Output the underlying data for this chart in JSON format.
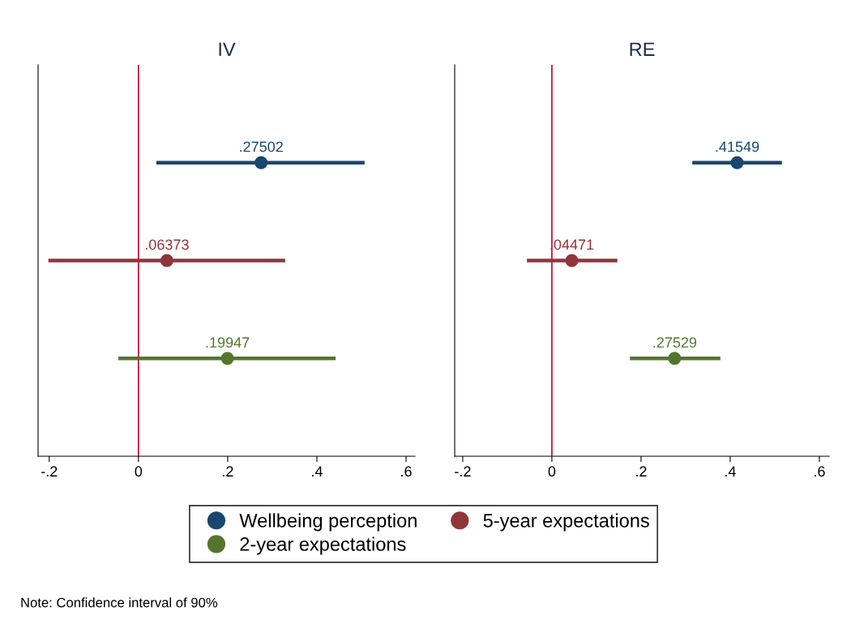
{
  "chart_data": [
    {
      "type": "scatter",
      "title": "IV",
      "orientation": "horizontal",
      "categories": [
        null,
        null,
        null
      ],
      "xlim": [
        -0.225,
        0.62
      ],
      "xticks": [
        {
          "value": -0.2,
          "label": "-.2"
        },
        {
          "value": 0,
          "label": "0"
        },
        {
          "value": 0.2,
          "label": ".2"
        },
        {
          "value": 0.4,
          "label": ".4"
        },
        {
          "value": 0.6,
          "label": ".6"
        }
      ],
      "series": [
        {
          "name": "Wellbeing perception",
          "color": "#1a476f",
          "values": [
            0.27502,
            null,
            null
          ],
          "errors": [
            [
              0.04,
              0.507
            ],
            null,
            null
          ],
          "value_labels": [
            ".27502",
            null,
            null
          ]
        },
        {
          "name": "5-year expectations",
          "color": "#90353b",
          "values": [
            null,
            0.06373,
            null
          ],
          "errors": [
            null,
            [
              -0.202,
              0.329
            ],
            null
          ],
          "value_labels": [
            null,
            ".06373",
            null
          ]
        },
        {
          "name": "2-year expectations",
          "color": "#55752f",
          "values": [
            null,
            null,
            0.19947
          ],
          "errors": [
            null,
            null,
            [
              -0.045,
              0.442
            ]
          ],
          "value_labels": [
            null,
            null,
            ".19947"
          ]
        }
      ],
      "ref_lines": [
        {
          "axis": "x",
          "value": 0,
          "color": "#c10534"
        }
      ],
      "marker": "circle",
      "grid": false,
      "legend": "bottom",
      "annotations": [
        "Note: Confidence interval of 90%"
      ]
    },
    {
      "type": "scatter",
      "title": "RE",
      "orientation": "horizontal",
      "categories": [
        null,
        null,
        null
      ],
      "xlim": [
        -0.218,
        0.622
      ],
      "xticks": [
        {
          "value": -0.2,
          "label": "-.2"
        },
        {
          "value": 0,
          "label": "0"
        },
        {
          "value": 0.2,
          "label": ".2"
        },
        {
          "value": 0.4,
          "label": ".4"
        },
        {
          "value": 0.6,
          "label": ".6"
        }
      ],
      "series": [
        {
          "name": "Wellbeing perception",
          "color": "#1a476f",
          "values": [
            0.41549,
            null,
            null
          ],
          "errors": [
            [
              0.315,
              0.516
            ],
            null,
            null
          ],
          "value_labels": [
            ".41549",
            null,
            null
          ]
        },
        {
          "name": "5-year expectations",
          "color": "#90353b",
          "values": [
            null,
            0.04471,
            null
          ],
          "errors": [
            null,
            [
              -0.056,
              0.147
            ],
            null
          ],
          "value_labels": [
            null,
            ".04471",
            null
          ]
        },
        {
          "name": "2-year expectations",
          "color": "#55752f",
          "values": [
            null,
            null,
            0.27529
          ],
          "errors": [
            null,
            null,
            [
              0.175,
              0.378
            ]
          ],
          "value_labels": [
            null,
            null,
            ".27529"
          ]
        }
      ],
      "ref_lines": [
        {
          "axis": "x",
          "value": 0,
          "color": "#c10534"
        }
      ],
      "marker": "circle",
      "grid": false
    }
  ]
}
